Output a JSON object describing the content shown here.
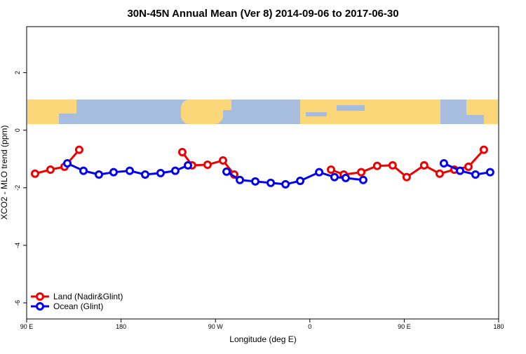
{
  "chart_data": {
    "type": "line",
    "title": "30N-45N Annual Mean (Ver 8)   2014-09-06 to 2017-06-30",
    "x_label": "Longitude (deg E)",
    "y_label": "XCO2 - MLO trend (ppm)",
    "xlim": [
      90,
      540
    ],
    "xticks": [
      {
        "value": 90,
        "label": "90 E"
      },
      180,
      {
        "value": 270,
        "label": "90 W"
      },
      {
        "value": 360,
        "label": "0"
      },
      {
        "value": 450,
        "label": "90 E"
      },
      {
        "value": 540,
        "label": "180"
      }
    ],
    "ylim": [
      -6.56,
      3.6
    ],
    "yticks": [
      -6,
      -4,
      -2,
      0,
      2
    ],
    "legend": "bottom-left",
    "series": [
      {
        "name": "Land (Nadir&Glint)",
        "color": "#ee0000",
        "x": [
          98,
          112.7,
          126.1,
          140.1,
          null,
          238.4,
          247.7,
          262.5,
          277.2,
          287.9,
          null,
          380.2,
          392.3,
          409,
          424.2,
          438.9,
          452.3,
          469,
          483.8,
          497.8,
          511.2,
          525.9
        ],
        "values": [
          -1.51,
          -1.37,
          -1.27,
          -0.68,
          null,
          -0.76,
          -1.22,
          -1.2,
          -1.05,
          -1.54,
          null,
          -1.37,
          -1.54,
          -1.46,
          -1.24,
          -1.22,
          -1.63,
          -1.22,
          -1.51,
          -1.37,
          -1.27,
          -0.68
        ]
      },
      {
        "name": "Ocean (Glint)",
        "color": "#0000ee",
        "x": [
          128.8,
          144.2,
          158.9,
          172.9,
          188.3,
          203,
          217.7,
          231.7,
          243.8,
          null,
          280.6,
          293.3,
          308,
          322.7,
          336.8,
          350.8,
          368.9,
          383.5,
          394.2,
          410.9,
          null,
          487.8,
          503.2,
          517.9,
          531.9
        ],
        "values": [
          -1.15,
          -1.41,
          -1.54,
          -1.46,
          -1.41,
          -1.54,
          -1.49,
          -1.41,
          -1.22,
          null,
          -1.44,
          -1.73,
          -1.78,
          -1.83,
          -1.88,
          -1.76,
          -1.46,
          -1.63,
          -1.66,
          -1.73,
          null,
          -1.15,
          -1.41,
          -1.54,
          -1.46
        ]
      }
    ]
  }
}
